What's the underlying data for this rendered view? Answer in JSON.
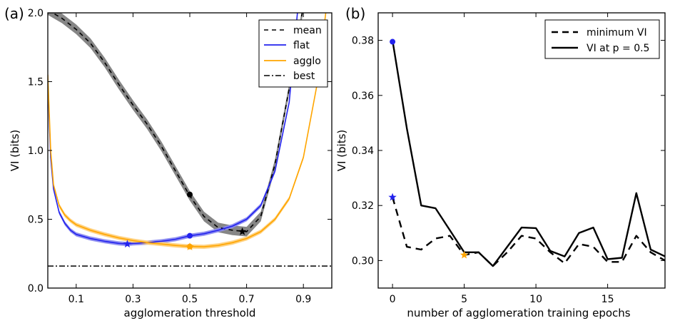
{
  "chart_data": [
    {
      "panel_label": "(a)",
      "type": "line",
      "xlabel": "agglomeration threshold",
      "ylabel": "VI (bits)",
      "xlim": [
        0.0,
        1.0
      ],
      "ylim": [
        0.0,
        2.0
      ],
      "xticks": [
        0.1,
        0.3,
        0.5,
        0.7,
        0.9
      ],
      "xtick_labels": [
        "0.1",
        "0.3",
        "0.5",
        "0.7",
        "0.9"
      ],
      "yticks": [
        0.0,
        0.5,
        1.0,
        1.5,
        2.0
      ],
      "ytick_labels": [
        "0.0",
        "0.5",
        "1.0",
        "1.5",
        "2.0"
      ],
      "legend": {
        "position": "top-right",
        "entries": [
          {
            "label": "mean",
            "style": "dashed",
            "color": "#000000"
          },
          {
            "label": "flat",
            "style": "solid",
            "color": "#2222ee"
          },
          {
            "label": "agglo",
            "style": "solid",
            "color": "#ffa500"
          },
          {
            "label": "best",
            "style": "dashdot",
            "color": "#000000"
          }
        ]
      },
      "series": [
        {
          "name": "mean",
          "color": "#000000",
          "band_color": "#808080",
          "band_halfwidth": 0.035,
          "x": [
            0.0,
            0.05,
            0.1,
            0.15,
            0.2,
            0.25,
            0.3,
            0.35,
            0.4,
            0.45,
            0.5,
            0.55,
            0.6,
            0.65,
            0.7,
            0.75,
            0.8,
            0.85,
            0.9
          ],
          "y": [
            2.02,
            1.96,
            1.88,
            1.78,
            1.64,
            1.48,
            1.33,
            1.19,
            1.03,
            0.85,
            0.67,
            0.52,
            0.44,
            0.42,
            0.41,
            0.52,
            0.9,
            1.45,
            2.05
          ]
        },
        {
          "name": "flat",
          "color": "#2222ee",
          "band_color": "#8a8af0",
          "band_halfwidth": 0.015,
          "x": [
            0.0,
            0.01,
            0.02,
            0.04,
            0.06,
            0.08,
            0.1,
            0.15,
            0.2,
            0.25,
            0.28,
            0.3,
            0.35,
            0.4,
            0.45,
            0.5,
            0.55,
            0.6,
            0.65,
            0.7,
            0.75,
            0.8,
            0.85,
            0.88
          ],
          "y": [
            1.5,
            0.95,
            0.72,
            0.55,
            0.47,
            0.42,
            0.39,
            0.36,
            0.34,
            0.325,
            0.32,
            0.325,
            0.33,
            0.34,
            0.355,
            0.38,
            0.395,
            0.42,
            0.45,
            0.5,
            0.6,
            0.85,
            1.35,
            2.02
          ]
        },
        {
          "name": "agglo",
          "color": "#ffa500",
          "band_color": "#ffd07a",
          "band_halfwidth": 0.015,
          "x": [
            0.0,
            0.01,
            0.02,
            0.04,
            0.06,
            0.08,
            0.1,
            0.15,
            0.2,
            0.25,
            0.3,
            0.35,
            0.4,
            0.45,
            0.5,
            0.55,
            0.6,
            0.65,
            0.7,
            0.75,
            0.8,
            0.85,
            0.9,
            0.95,
            0.98
          ],
          "y": [
            1.55,
            1.0,
            0.75,
            0.6,
            0.53,
            0.49,
            0.46,
            0.42,
            0.39,
            0.365,
            0.345,
            0.33,
            0.32,
            0.31,
            0.302,
            0.3,
            0.31,
            0.33,
            0.36,
            0.41,
            0.5,
            0.65,
            0.95,
            1.5,
            2.02
          ]
        }
      ],
      "hlines": [
        {
          "name": "best",
          "y": 0.16,
          "style": "dashdot",
          "color": "#000000"
        }
      ],
      "markers": [
        {
          "series": "mean",
          "shape": "circle",
          "x": 0.5,
          "y": 0.68,
          "color": "#000000"
        },
        {
          "series": "mean",
          "shape": "star",
          "x": 0.685,
          "y": 0.41,
          "color": "#000000"
        },
        {
          "series": "flat",
          "shape": "circle",
          "x": 0.5,
          "y": 0.38,
          "color": "#2222ee"
        },
        {
          "series": "flat",
          "shape": "star",
          "x": 0.28,
          "y": 0.32,
          "color": "#2222ee"
        },
        {
          "series": "agglo",
          "shape": "circle",
          "x": 0.5,
          "y": 0.302,
          "color": "#ffa500"
        },
        {
          "series": "agglo",
          "shape": "star",
          "x": 0.5,
          "y": 0.3,
          "color": "#ffa500"
        }
      ]
    },
    {
      "panel_label": "(b)",
      "type": "line",
      "xlabel": "number of agglomeration training epochs",
      "ylabel": "VI (bits)",
      "xlim": [
        -1.0,
        19.0
      ],
      "ylim": [
        0.29,
        0.39
      ],
      "xticks": [
        0,
        5,
        10,
        15
      ],
      "xtick_labels": [
        "0",
        "5",
        "10",
        "15"
      ],
      "yticks": [
        0.3,
        0.32,
        0.34,
        0.36,
        0.38
      ],
      "ytick_labels": [
        "0.30",
        "0.32",
        "0.34",
        "0.36",
        "0.38"
      ],
      "legend": {
        "position": "top-right",
        "entries": [
          {
            "label": "minimum VI",
            "style": "dashed",
            "color": "#000000"
          },
          {
            "label": "VI at p = 0.5",
            "style": "solid",
            "color": "#000000"
          }
        ]
      },
      "series": [
        {
          "name": "minimum VI",
          "color": "#000000",
          "style": "dashed",
          "x": [
            0,
            1,
            2,
            3,
            4,
            5,
            6,
            7,
            8,
            9,
            10,
            11,
            12,
            13,
            14,
            15,
            16,
            17,
            18,
            19
          ],
          "y": [
            0.323,
            0.305,
            0.304,
            0.308,
            0.309,
            0.302,
            0.303,
            0.298,
            0.303,
            0.309,
            0.308,
            0.303,
            0.299,
            0.306,
            0.305,
            0.2995,
            0.2995,
            0.309,
            0.303,
            0.3
          ]
        },
        {
          "name": "VI at p = 0.5",
          "color": "#000000",
          "style": "solid",
          "x": [
            0,
            1,
            2,
            3,
            4,
            5,
            6,
            7,
            8,
            9,
            10,
            11,
            12,
            13,
            14,
            15,
            16,
            17,
            18,
            19
          ],
          "y": [
            0.38,
            0.348,
            0.32,
            0.319,
            0.311,
            0.303,
            0.303,
            0.298,
            0.305,
            0.312,
            0.3118,
            0.3035,
            0.3015,
            0.31,
            0.312,
            0.3005,
            0.301,
            0.3245,
            0.304,
            0.3015
          ]
        }
      ],
      "markers": [
        {
          "shape": "circle",
          "x": 0,
          "y": 0.3795,
          "color": "#2222ee"
        },
        {
          "shape": "star",
          "x": 0,
          "y": 0.323,
          "color": "#2222ee"
        },
        {
          "shape": "star",
          "x": 5,
          "y": 0.302,
          "color": "#ffa500"
        }
      ]
    }
  ]
}
